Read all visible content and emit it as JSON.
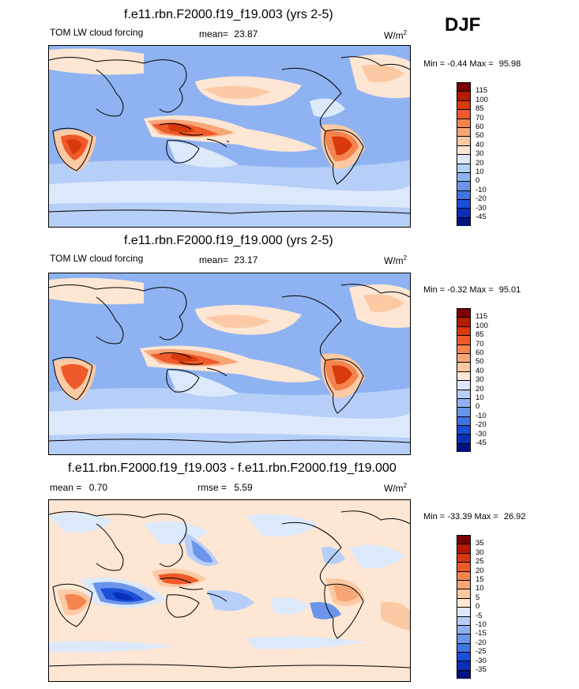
{
  "season": "DJF",
  "colors": {
    "abs_scale": [
      "#7a0000",
      "#b51a00",
      "#d83a0c",
      "#ee5a2a",
      "#f5844f",
      "#f9a676",
      "#fbc9a3",
      "#fde6d3",
      "#dce9fb",
      "#b6cff8",
      "#8fb3f2",
      "#6a95ea",
      "#4174e3",
      "#1b4fd8",
      "#0a30b8",
      "#00137e"
    ],
    "diff_scale": [
      "#7a0000",
      "#b51a00",
      "#d83a0c",
      "#ee5a2a",
      "#f5844f",
      "#f9a676",
      "#fbc9a3",
      "#fde6d3",
      "#dce9fb",
      "#b6cff8",
      "#8fb3f2",
      "#6a95ea",
      "#4174e3",
      "#1b4fd8",
      "#0a30b8",
      "#00137e"
    ]
  },
  "panels": [
    {
      "title": "f.e11.rbn.F2000.f19_f19.003 (yrs 2-5)",
      "field_label": "TOM LW cloud forcing",
      "mean_label": "mean=",
      "mean_value": "23.87",
      "units_base": "W/m",
      "units_exp": "2",
      "min_label": "Min =",
      "min_value": "-0.44",
      "max_label": "Max =",
      "max_value": "95.98",
      "legend_levels": [
        "115",
        "100",
        "85",
        "70",
        "60",
        "50",
        "40",
        "30",
        "20",
        "10",
        "0",
        "-10",
        "-20",
        "-30",
        "-45"
      ]
    },
    {
      "title": "f.e11.rbn.F2000.f19_f19.000 (yrs 2-5)",
      "field_label": "TOM LW cloud forcing",
      "mean_label": "mean=",
      "mean_value": "23.17",
      "units_base": "W/m",
      "units_exp": "2",
      "min_label": "Min =",
      "min_value": "-0.32",
      "max_label": "Max =",
      "max_value": "95.01",
      "legend_levels": [
        "115",
        "100",
        "85",
        "70",
        "60",
        "50",
        "40",
        "30",
        "20",
        "10",
        "0",
        "-10",
        "-20",
        "-30",
        "-45"
      ]
    },
    {
      "title": "f.e11.rbn.F2000.f19_f19.003 - f.e11.rbn.F2000.f19_f19.000",
      "mean_label": "mean =",
      "mean_value": "0.70",
      "rmse_label": "rmse =",
      "rmse_value": "5.59",
      "units_base": "W/m",
      "units_exp": "2",
      "min_label": "Min =",
      "min_value": "-33.39",
      "max_label": "Max =",
      "max_value": "26.92",
      "legend_levels": [
        "35",
        "30",
        "25",
        "20",
        "15",
        "10",
        "5",
        "0",
        "-5",
        "-10",
        "-15",
        "-20",
        "-25",
        "-30",
        "-35"
      ]
    }
  ]
}
